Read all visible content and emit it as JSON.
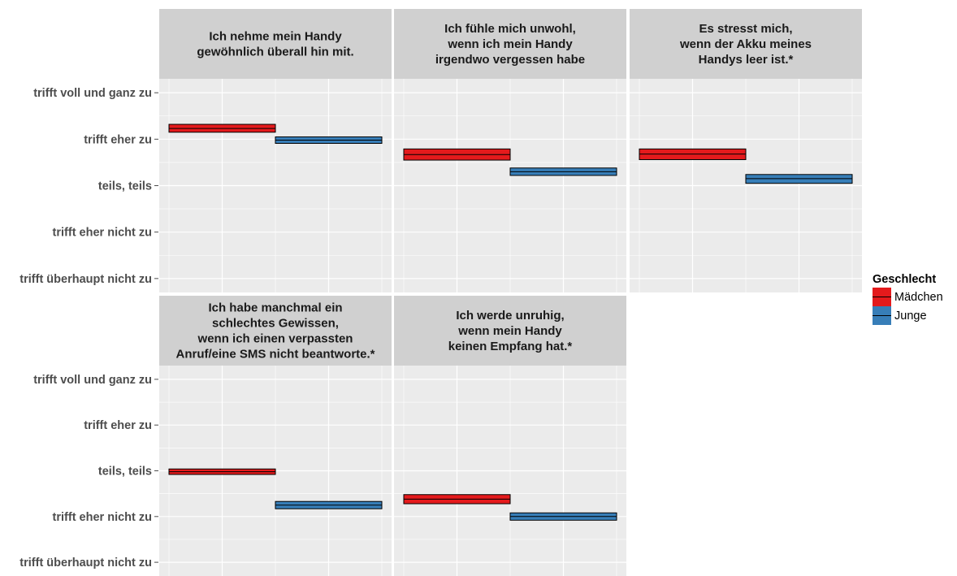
{
  "chart_data": {
    "type": "crossbar",
    "y_levels": [
      "trifft überhaupt nicht zu",
      "trifft eher nicht zu",
      "teils, teils",
      "trifft eher zu",
      "trifft voll und ganz zu"
    ],
    "ylim": [
      0.7,
      5.3
    ],
    "legend": {
      "title": "Geschlecht",
      "position": "right",
      "entries": [
        {
          "name": "Mädchen",
          "color": "#e41a1c"
        },
        {
          "name": "Junge",
          "color": "#377eb8"
        }
      ]
    },
    "panels": [
      {
        "title_lines": [
          "Ich nehme mein Handy",
          "gewöhnlich überall hin mit."
        ],
        "series": [
          {
            "name": "Mädchen",
            "mean": 4.23,
            "lower": 4.15,
            "upper": 4.32
          },
          {
            "name": "Junge",
            "mean": 3.98,
            "lower": 3.91,
            "upper": 4.05
          }
        ]
      },
      {
        "title_lines": [
          "Ich fühle mich unwohl,",
          "wenn ich mein Handy",
          "irgendwo vergessen habe"
        ],
        "series": [
          {
            "name": "Mädchen",
            "mean": 3.67,
            "lower": 3.55,
            "upper": 3.79
          },
          {
            "name": "Junge",
            "mean": 3.3,
            "lower": 3.22,
            "upper": 3.38
          }
        ]
      },
      {
        "title_lines": [
          "Es stresst mich,",
          "wenn der Akku meines",
          "Handys leer ist.*"
        ],
        "series": [
          {
            "name": "Mädchen",
            "mean": 3.68,
            "lower": 3.56,
            "upper": 3.79
          },
          {
            "name": "Junge",
            "mean": 3.15,
            "lower": 3.05,
            "upper": 3.24
          }
        ]
      },
      {
        "title_lines": [
          "Ich habe manchmal ein",
          "schlechtes Gewissen,",
          "wenn ich einen verpassten",
          "Anruf/eine SMS nicht beantworte.*"
        ],
        "series": [
          {
            "name": "Mädchen",
            "mean": 2.98,
            "lower": 2.92,
            "upper": 3.04
          },
          {
            "name": "Junge",
            "mean": 2.25,
            "lower": 2.17,
            "upper": 2.33
          }
        ]
      },
      {
        "title_lines": [
          "Ich werde unruhig,",
          "wenn mein Handy",
          "keinen Empfang hat.*"
        ],
        "series": [
          {
            "name": "Mädchen",
            "mean": 2.38,
            "lower": 2.28,
            "upper": 2.48
          },
          {
            "name": "Junge",
            "mean": 2.0,
            "lower": 1.92,
            "upper": 2.08
          }
        ]
      }
    ]
  }
}
